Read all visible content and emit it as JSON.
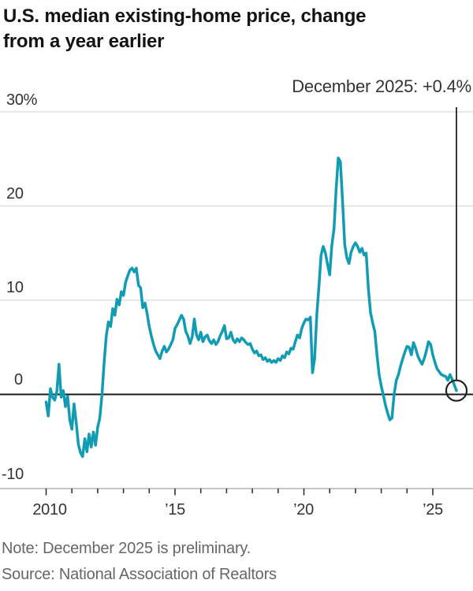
{
  "title": {
    "line1": "U.S. median existing-home price, change",
    "line2": "from a year earlier"
  },
  "annotation": "December 2025: +0.4%",
  "note": "Note: December 2025 is preliminary.",
  "source": "Source: National Association of Realtors",
  "axis": {
    "yticks": {
      "t30": "30%",
      "t20": "20",
      "t10": "10",
      "t0": "0",
      "tm10": "-10"
    },
    "xticks": {
      "x2010": "2010",
      "x15": "’15",
      "x20": "’20",
      "x25": "’25"
    }
  },
  "colors": {
    "line": "#129cb3",
    "zero_line": "#1a1a1a",
    "grid": "#d9d9d9",
    "axis_base": "#b3b3b3",
    "tick": "#333333",
    "callout": "#222222"
  },
  "chart_data": {
    "type": "line",
    "title": "U.S. median existing-home price, change from a year earlier",
    "unit": "percent change from a year earlier",
    "frequency": "monthly",
    "x_start": "2010-01",
    "x_end": "2025-12",
    "ylim": [
      -10,
      30
    ],
    "ytick_values": [
      30,
      20,
      10,
      0,
      -10
    ],
    "ytick_labels": [
      "30%",
      "20",
      "10",
      "0",
      "-10"
    ],
    "xtick_years": [
      2010,
      2011,
      2012,
      2013,
      2014,
      2015,
      2016,
      2017,
      2018,
      2019,
      2020,
      2021,
      2022,
      2023,
      2024,
      2025
    ],
    "xtick_labeled_years": [
      2010,
      2015,
      2020,
      2025
    ],
    "grid": "horizontal",
    "legend_position": "none",
    "highlight": {
      "label": "December 2025: +0.4%",
      "date": "2025-12",
      "value": 0.4,
      "circled": true,
      "callout_line": true
    },
    "series": [
      {
        "name": "Median existing-home price, YoY % change",
        "values": [
          -0.8,
          -2.3,
          0.6,
          -0.3,
          -0.6,
          0.3,
          3.2,
          -0.3,
          0.4,
          -1.3,
          -0.2,
          -2.7,
          -3.7,
          -1.0,
          -3.0,
          -5.3,
          -6.2,
          -6.6,
          -4.7,
          -6.1,
          -4.2,
          -5.6,
          -4.0,
          -5.4,
          -3.5,
          -2.5,
          0.0,
          3.4,
          6.2,
          7.7,
          7.2,
          9.1,
          8.4,
          10.1,
          9.5,
          10.9,
          10.5,
          11.9,
          12.6,
          13.2,
          13.4,
          13.0,
          13.4,
          11.6,
          11.3,
          9.2,
          9.7,
          8.6,
          7.2,
          6.2,
          5.3,
          4.6,
          4.2,
          3.8,
          4.6,
          5.1,
          4.5,
          4.8,
          5.3,
          5.8,
          7.0,
          7.4,
          7.9,
          8.4,
          8.0,
          6.7,
          6.2,
          5.4,
          6.1,
          8.0,
          6.3,
          5.8,
          6.6,
          5.6,
          6.1,
          6.3,
          5.7,
          5.4,
          5.8,
          5.3,
          5.6,
          6.2,
          6.7,
          7.3,
          5.9,
          6.0,
          6.6,
          5.8,
          5.5,
          5.9,
          5.6,
          6.0,
          5.8,
          5.5,
          5.3,
          5.4,
          4.8,
          4.4,
          4.6,
          4.1,
          4.2,
          3.7,
          3.9,
          3.5,
          3.7,
          3.4,
          3.6,
          3.4,
          3.8,
          3.6,
          4.1,
          3.9,
          4.5,
          4.3,
          4.9,
          4.8,
          5.6,
          6.3,
          6.0,
          7.0,
          7.6,
          8.0,
          7.9,
          8.2,
          2.3,
          3.8,
          8.5,
          11.5,
          14.8,
          15.7,
          15.0,
          13.8,
          12.7,
          15.8,
          17.6,
          21.8,
          25.1,
          24.7,
          20.4,
          15.9,
          14.5,
          13.9,
          15.1,
          15.7,
          16.1,
          15.7,
          15.1,
          15.5,
          14.8,
          15.0,
          11.2,
          8.7,
          7.6,
          6.7,
          4.2,
          2.1,
          0.9,
          -0.1,
          -1.2,
          -2.0,
          -2.7,
          -2.5,
          0.0,
          1.5,
          2.1,
          3.0,
          3.8,
          4.5,
          5.1,
          5.0,
          4.2,
          5.5,
          4.9,
          4.1,
          3.6,
          3.2,
          3.8,
          4.6,
          5.6,
          5.3,
          4.2,
          3.4,
          2.7,
          2.4,
          2.1,
          2.0,
          1.9,
          1.5,
          2.1,
          1.6,
          1.0,
          0.4
        ]
      }
    ]
  }
}
